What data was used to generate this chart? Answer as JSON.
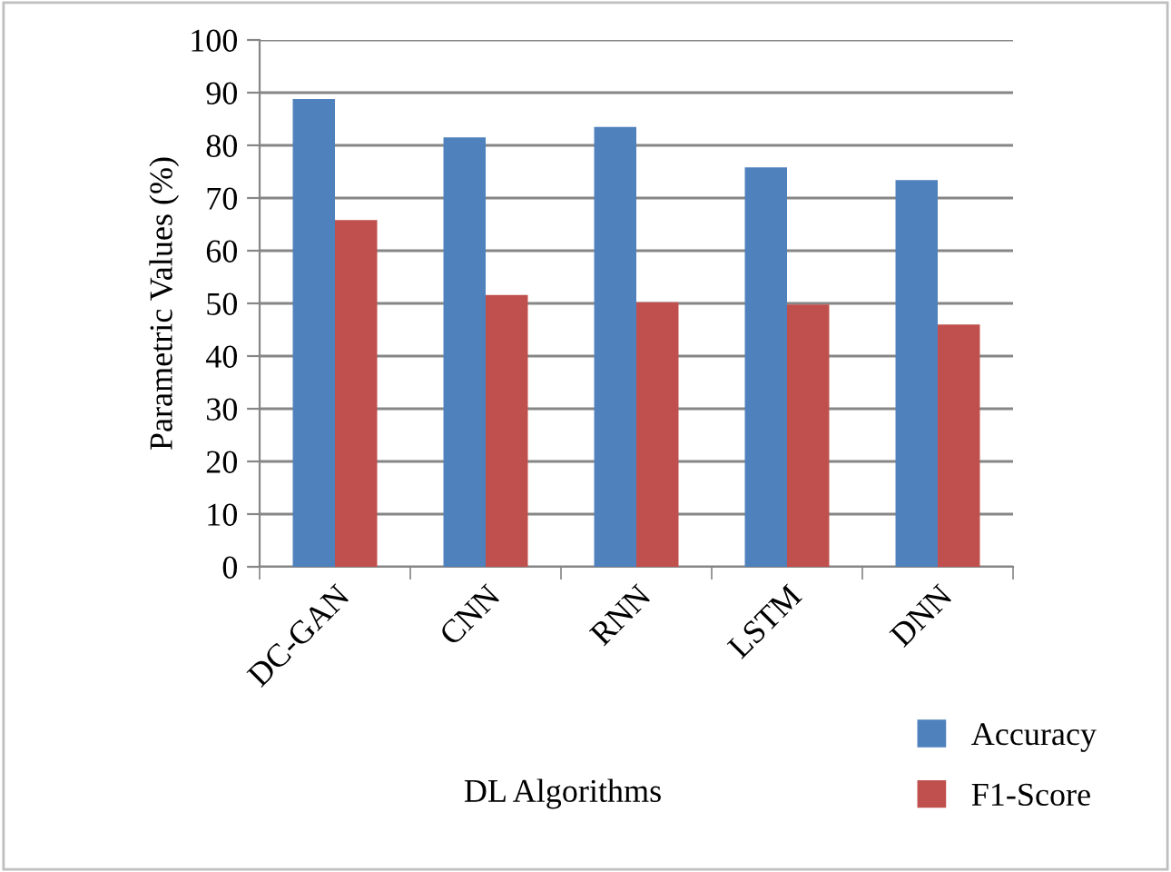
{
  "chart_data": {
    "type": "bar",
    "xlabel": "DL Algorithms",
    "ylabel": "Parametric Values (%)",
    "categories": [
      "DC-GAN",
      "CNN",
      "RNN",
      "LSTM",
      "DNN"
    ],
    "series": [
      {
        "name": "Accuracy",
        "color": "#4f81bd",
        "values": [
          88.8,
          81.5,
          83.5,
          75.8,
          73.4
        ]
      },
      {
        "name": "F1-Score",
        "color": "#c0504d",
        "values": [
          65.8,
          51.6,
          50.2,
          49.8,
          46
        ]
      }
    ],
    "ylim": [
      0,
      100
    ],
    "yticks": [
      0,
      10,
      20,
      30,
      40,
      50,
      60,
      70,
      80,
      90,
      100
    ],
    "grid": "y",
    "legend": "bottom right"
  }
}
